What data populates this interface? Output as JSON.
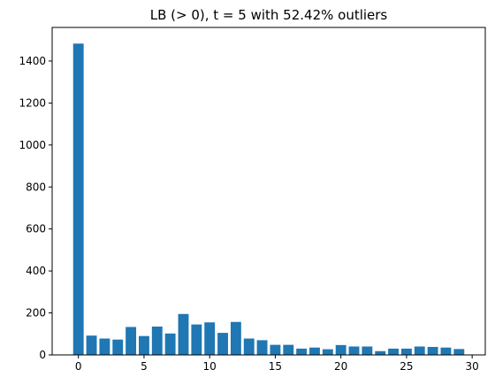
{
  "chart_data": {
    "type": "bar",
    "title": "LB (> 0),  t = 5 with 52.42% outliers",
    "xlabel": "",
    "ylabel": "",
    "x": [
      0,
      1,
      2,
      3,
      4,
      5,
      6,
      7,
      8,
      9,
      10,
      11,
      12,
      13,
      14,
      15,
      16,
      17,
      18,
      19,
      20,
      21,
      22,
      23,
      24,
      25,
      26,
      27,
      28,
      29
    ],
    "values": [
      1483,
      92,
      78,
      73,
      133,
      90,
      135,
      102,
      195,
      145,
      155,
      105,
      157,
      78,
      70,
      48,
      48,
      30,
      35,
      27,
      47,
      40,
      40,
      18,
      30,
      30,
      40,
      38,
      35,
      28
    ],
    "xlim": [
      -2,
      31
    ],
    "ylim": [
      0,
      1560
    ],
    "xticks": [
      0,
      5,
      10,
      15,
      20,
      25,
      30
    ],
    "yticks": [
      0,
      200,
      400,
      600,
      800,
      1000,
      1200,
      1400
    ],
    "bar_color": "#1f77b4",
    "grid": false,
    "legend": "none"
  }
}
